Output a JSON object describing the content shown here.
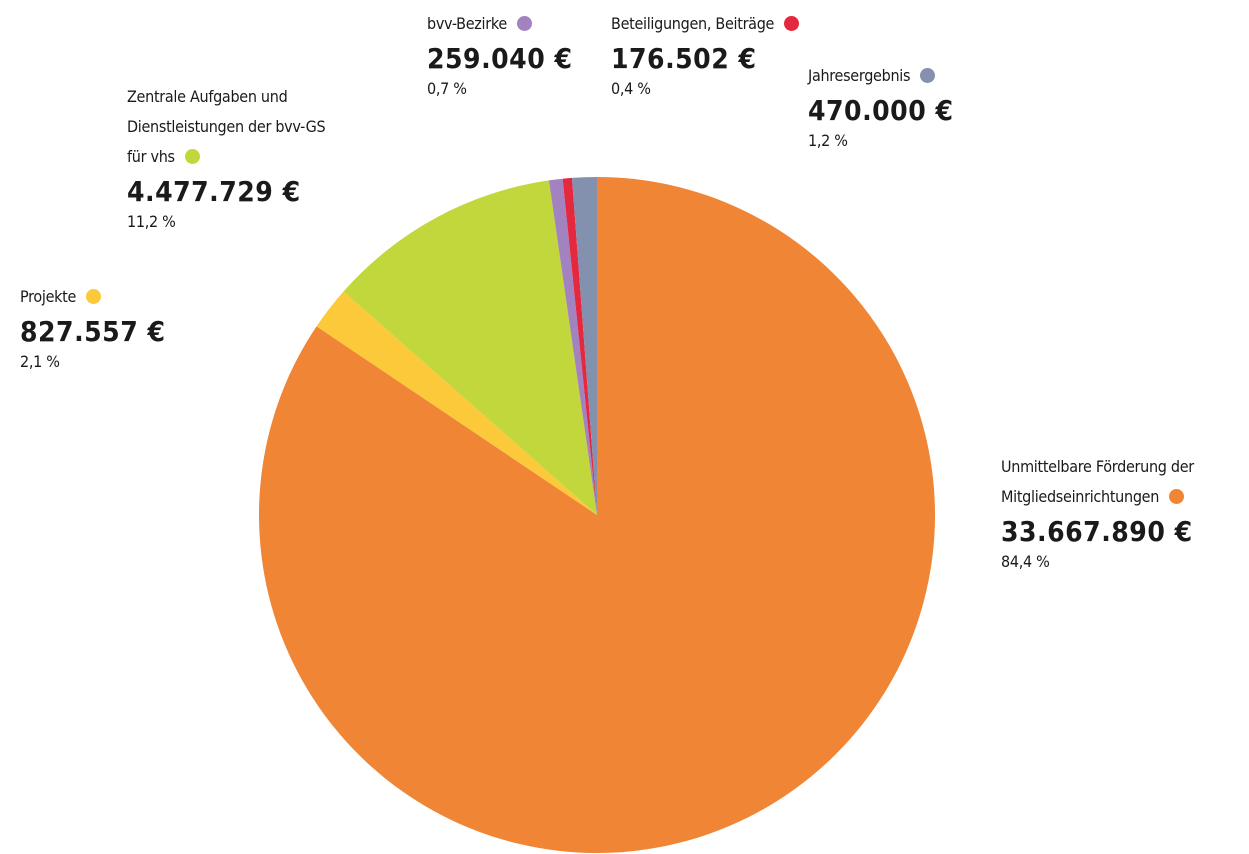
{
  "chart_data": {
    "type": "pie",
    "categories": [
      "Unmittelbare Förderung der\nMitgliedseinrichtungen",
      "Projekte",
      "Zentrale Aufgaben und\nDienstleistungen der bvv-GS\nfür vhs",
      "bvv-Bezirke",
      "Beteiligungen, Beiträge",
      "Jahresergebnis"
    ],
    "values": [
      33667890,
      827557,
      4477729,
      259040,
      176502,
      470000
    ],
    "value_labels": [
      "33.667.890 €",
      "827.557 €",
      "4.477.729 €",
      "259.040 €",
      "176.502 €",
      "470.000 €"
    ],
    "percents": [
      84.4,
      2.1,
      11.2,
      0.7,
      0.4,
      1.2
    ],
    "percent_labels": [
      "84,4 %",
      "2,1 %",
      "11,2 %",
      "0,7 %",
      "0,4 %",
      "1,2 %"
    ],
    "colors": [
      "#ef8535",
      "#fbc93a",
      "#c2d73b",
      "#a283c0",
      "#e4283e",
      "#8390ae"
    ]
  }
}
